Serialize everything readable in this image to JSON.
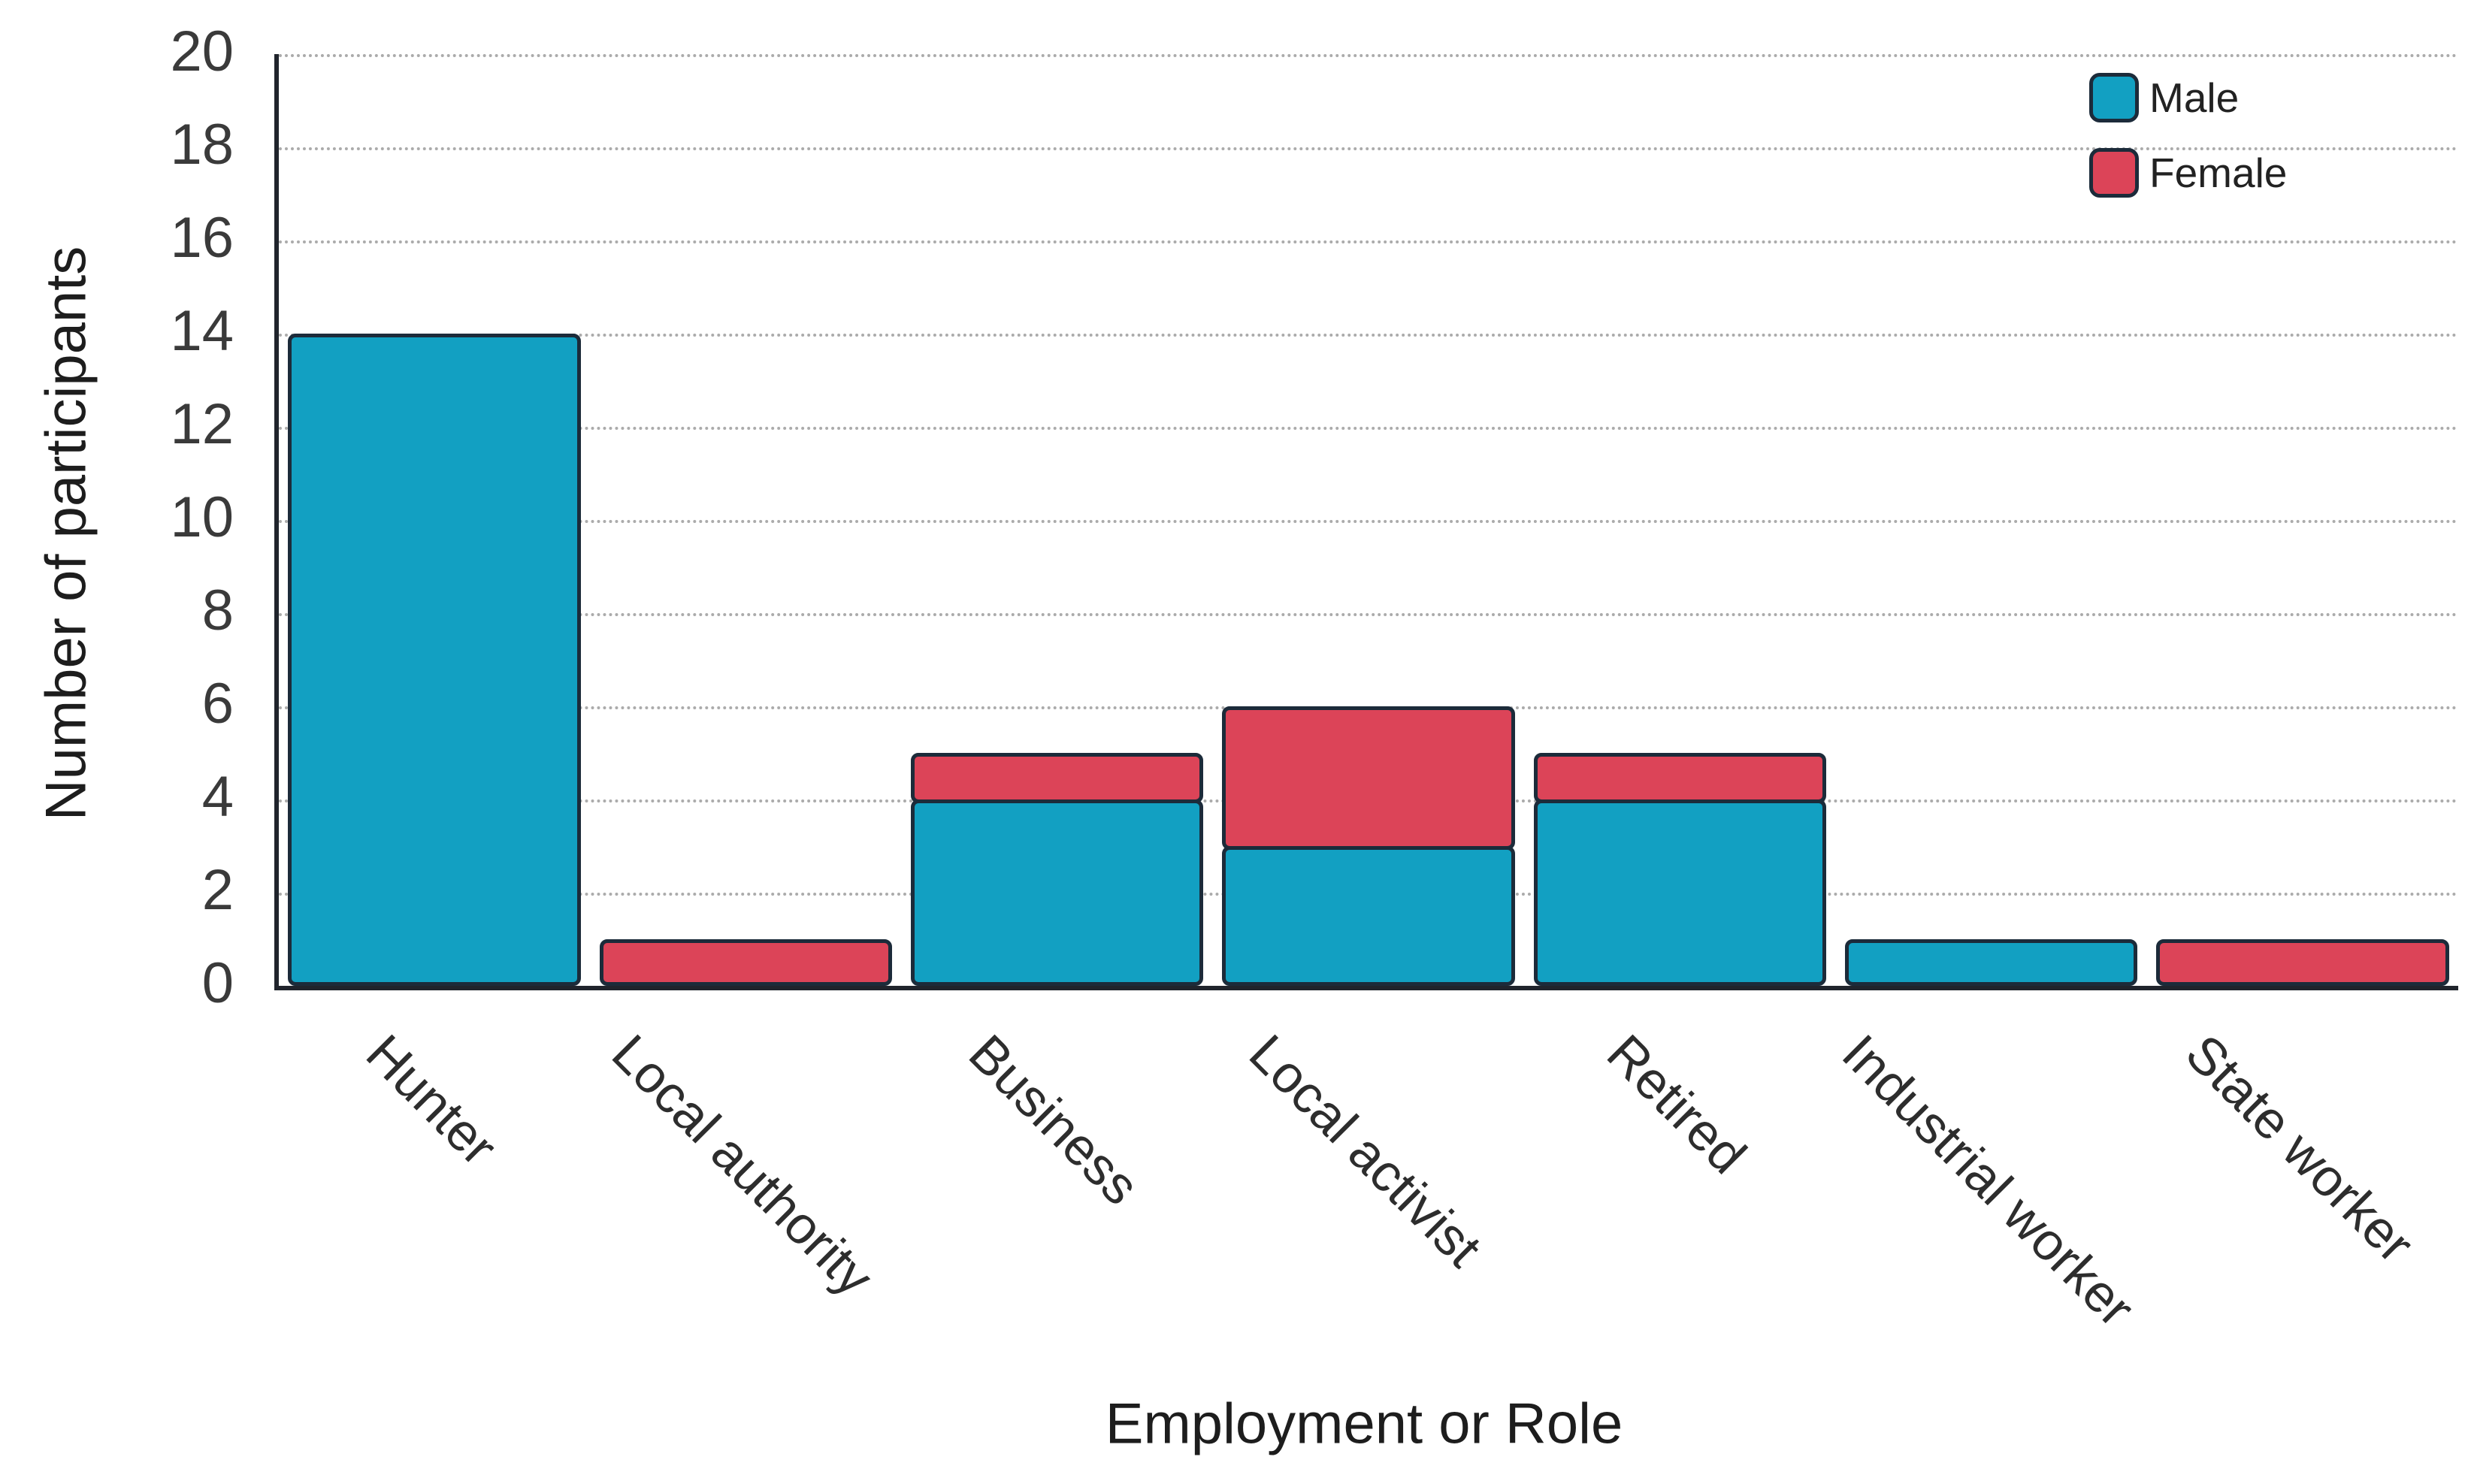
{
  "chart_data": {
    "type": "bar",
    "stacked": true,
    "title": "",
    "xlabel": "Employment or Role",
    "ylabel": "Number of participants",
    "categories": [
      "Hunter",
      "Local authority",
      "Business",
      "Local activist",
      "Retired",
      "Industrial worker",
      "State worker"
    ],
    "series": [
      {
        "name": "Male",
        "color": "#12a0c2",
        "values": [
          14,
          0,
          4,
          3,
          4,
          1,
          0
        ]
      },
      {
        "name": "Female",
        "color": "#dc4458",
        "values": [
          0,
          1,
          1,
          3,
          1,
          0,
          1
        ]
      }
    ],
    "ylim": [
      0,
      20
    ],
    "yticks": [
      0,
      2,
      4,
      6,
      8,
      10,
      12,
      14,
      16,
      18,
      20
    ],
    "grid": {
      "horizontal": true,
      "style": "dotted",
      "color": "#ababab"
    },
    "legend": {
      "position": "top-right",
      "entries": [
        "Male",
        "Female"
      ]
    },
    "style": {
      "bar_border_color": "#1c2b3a",
      "axis_color": "#20242c",
      "tick_label_color": "#3a3a3a",
      "axis_title_color": "#1d1d1d"
    }
  }
}
